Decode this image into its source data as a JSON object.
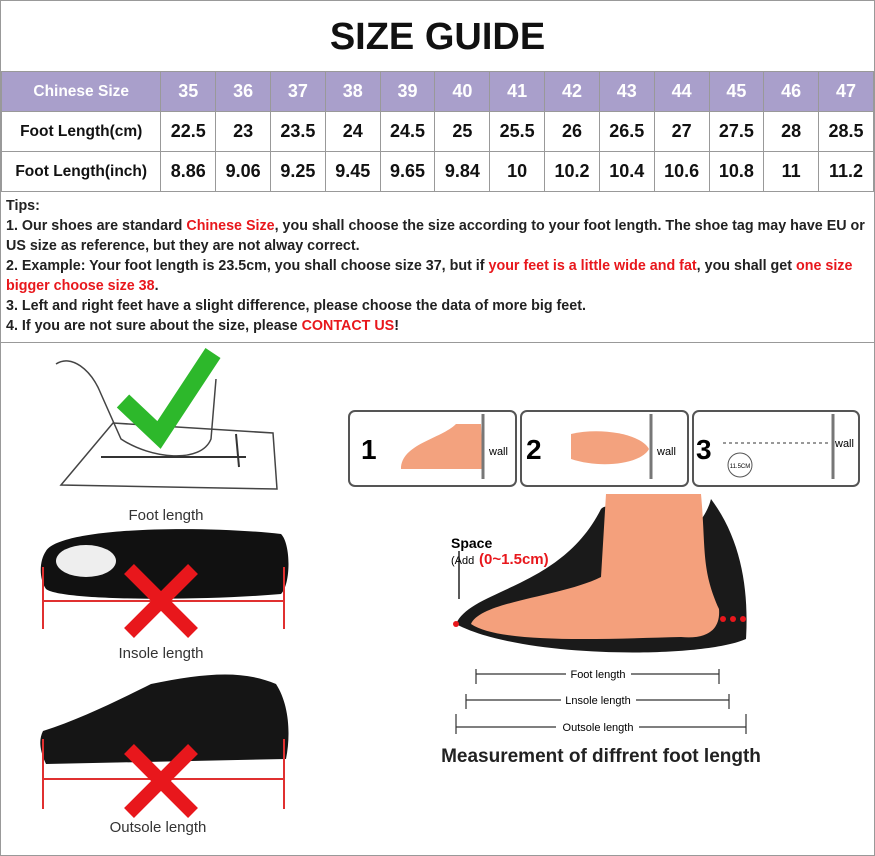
{
  "header": {
    "title": "SIZE GUIDE"
  },
  "table": {
    "header_color": "#a99fcb",
    "rows": [
      [
        "Chinese Size",
        "35",
        "36",
        "37",
        "38",
        "39",
        "40",
        "41",
        "42",
        "43",
        "44",
        "45",
        "46",
        "47"
      ],
      [
        "Foot Length(cm)",
        "22.5",
        "23",
        "23.5",
        "24",
        "24.5",
        "25",
        "25.5",
        "26",
        "26.5",
        "27",
        "27.5",
        "28",
        "28.5"
      ],
      [
        "Foot Length(inch)",
        "8.86",
        "9.06",
        "9.25",
        "9.45",
        "9.65",
        "9.84",
        "10",
        "10.2",
        "10.4",
        "10.6",
        "10.8",
        "11",
        "11.2"
      ]
    ]
  },
  "tips": {
    "title": "Tips:",
    "items": [
      [
        {
          "text": "1. Our shoes are standard "
        },
        {
          "text": "Chinese Size",
          "color": "#e8171c"
        },
        {
          "text": ", you shall choose the size according to your foot length. The shoe tag may have EU or US size as reference, but they are not alway correct."
        }
      ],
      [
        {
          "text": "2. Example: Your foot length is 23.5cm, you shall choose size 37, but if "
        },
        {
          "text": "your feet is a little wide and fat",
          "color": "#e8171c"
        },
        {
          "text": ", you shall get "
        },
        {
          "text": "one size bigger choose size 38",
          "color": "#e8171c"
        },
        {
          "text": "."
        }
      ],
      [
        {
          "text": "3. Left and right feet have a slight difference, please choose the data of more big feet."
        }
      ],
      [
        {
          "text": "4. If you are not sure about the size, please "
        },
        {
          "text": "CONTACT US",
          "color": "#e8171c"
        },
        {
          "text": "!"
        }
      ]
    ]
  },
  "illustrations": {
    "left": {
      "foot_length": "Foot length",
      "insole_length": "Insole length",
      "outsole_length": "Outsole length"
    },
    "steps": [
      {
        "number": "1",
        "wall": "wall"
      },
      {
        "number": "2",
        "wall": "wall"
      },
      {
        "number": "3",
        "wall": "wall",
        "note": "11.5CM"
      }
    ],
    "diagram": {
      "space": "Space",
      "add": "(Add",
      "range": "(0~1.5cm)",
      "foot_length": "Foot length",
      "insole_length": "Lnsole length",
      "outsole_length": "Outsole length",
      "caption": "Measurement of diffrent foot length"
    }
  }
}
